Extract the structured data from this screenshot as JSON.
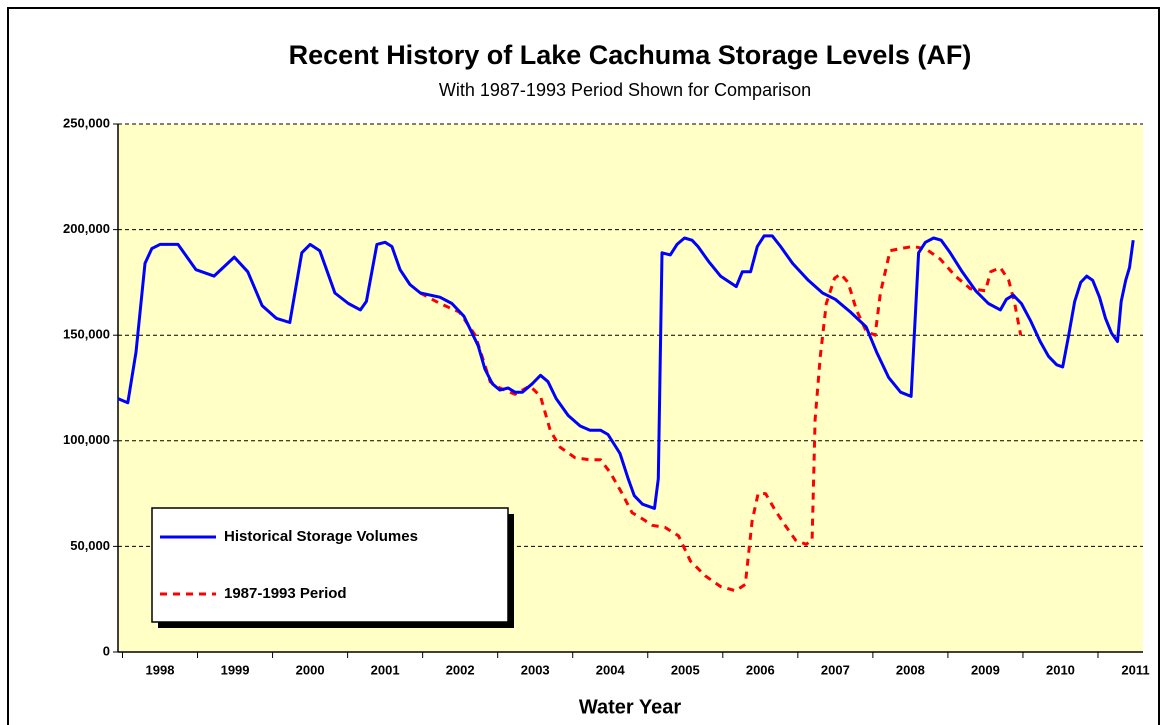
{
  "chart_data": {
    "type": "line",
    "title": "Recent History of Lake Cachuma Storage Levels (AF)",
    "subtitle": "With 1987-1993 Period Shown for Comparison",
    "x_label": "Water Year",
    "xlim": [
      1997.44,
      2011.1
    ],
    "xticks": [
      1998,
      1999,
      2000,
      2001,
      2002,
      2003,
      2004,
      2005,
      2006,
      2007,
      2008,
      2009,
      2010,
      2011
    ],
    "ylim": [
      0,
      250000
    ],
    "yticks": [
      0,
      {
        "value": 50000,
        "label": "50,000"
      },
      {
        "value": 100000,
        "label": "100,000"
      },
      {
        "value": 150000,
        "label": "150,000"
      },
      {
        "value": 200000,
        "label": "200,000"
      },
      {
        "value": 250000,
        "label": "250,000"
      }
    ],
    "grid": true,
    "legend": "lower left",
    "background": "#ffffc6",
    "series": [
      {
        "name": "Historical Storage Volumes",
        "color": "#0000ff",
        "dashed": false,
        "x": [
          1997.44,
          1997.57,
          1997.68,
          1997.8,
          1997.89,
          1998.0,
          1998.24,
          1998.48,
          1998.72,
          1998.99,
          1999.17,
          1999.36,
          1999.55,
          1999.73,
          1999.89,
          2000.0,
          2000.13,
          2000.33,
          2000.51,
          2000.67,
          2000.75,
          2000.89,
          2001.0,
          2001.09,
          2001.2,
          2001.33,
          2001.47,
          2001.73,
          2001.89,
          2002.05,
          2002.24,
          2002.33,
          2002.43,
          2002.53,
          2002.64,
          2002.73,
          2002.83,
          2002.96,
          2003.07,
          2003.17,
          2003.28,
          2003.44,
          2003.6,
          2003.73,
          2003.87,
          2003.97,
          2004.13,
          2004.24,
          2004.32,
          2004.43,
          2004.59,
          2004.64,
          2004.69,
          2004.8,
          2004.89,
          2004.99,
          2005.09,
          2005.17,
          2005.31,
          2005.47,
          2005.68,
          2005.76,
          2005.87,
          2005.96,
          2006.05,
          2006.16,
          2006.27,
          2006.43,
          2006.64,
          2006.83,
          2007.0,
          2007.2,
          2007.41,
          2007.55,
          2007.71,
          2007.87,
          2008.01,
          2008.11,
          2008.2,
          2008.31,
          2008.41,
          2008.53,
          2008.69,
          2008.87,
          2009.04,
          2009.2,
          2009.28,
          2009.37,
          2009.48,
          2009.6,
          2009.73,
          2009.84,
          2009.95,
          2010.03,
          2010.11,
          2010.19,
          2010.27,
          2010.35,
          2010.43,
          2010.52,
          2010.6,
          2010.68,
          2010.76,
          2010.81,
          2010.87,
          2010.92,
          2010.97
        ],
        "values": [
          120000,
          118000,
          142000,
          184000,
          191000,
          193000,
          193000,
          181000,
          178000,
          187000,
          180000,
          164000,
          158000,
          156000,
          189000,
          193000,
          190000,
          170000,
          165000,
          162000,
          166000,
          193000,
          194000,
          192000,
          181000,
          174000,
          170000,
          168000,
          165000,
          159000,
          145000,
          134000,
          127000,
          124000,
          125000,
          123000,
          123000,
          127000,
          131000,
          128000,
          120000,
          112000,
          107000,
          105000,
          105000,
          103000,
          94000,
          82000,
          74000,
          70000,
          68000,
          82000,
          189000,
          188000,
          193000,
          196000,
          195000,
          192000,
          185000,
          178000,
          173000,
          180000,
          180000,
          192000,
          197000,
          197000,
          192000,
          184000,
          176000,
          170000,
          167000,
          161000,
          154000,
          142000,
          130000,
          123000,
          121000,
          189000,
          194000,
          196000,
          195000,
          189000,
          180000,
          171000,
          165000,
          162000,
          167000,
          169000,
          165000,
          157000,
          147000,
          140000,
          136000,
          135000,
          150000,
          166000,
          175000,
          178000,
          176000,
          168000,
          158000,
          151000,
          147000,
          166000,
          176000,
          182000,
          195000
        ]
      },
      {
        "name": "1987-1993 Period",
        "color": "#ff0000",
        "dashed": true,
        "x": [
          2001.47,
          2001.73,
          2001.99,
          2002.2,
          2002.4,
          2002.53,
          2002.73,
          2002.93,
          2003.07,
          2003.2,
          2003.33,
          2003.53,
          2003.73,
          2003.87,
          2004.0,
          2004.16,
          2004.29,
          2004.43,
          2004.56,
          2004.73,
          2004.91,
          2005.07,
          2005.27,
          2005.47,
          2005.67,
          2005.8,
          2005.89,
          2005.97,
          2006.07,
          2006.2,
          2006.33,
          2006.47,
          2006.61,
          2006.69,
          2006.73,
          2006.8,
          2006.88,
          2006.99,
          2007.07,
          2007.17,
          2007.28,
          2007.41,
          2007.53,
          2007.6,
          2007.73,
          2007.87,
          2008.03,
          2008.2,
          2008.4,
          2008.6,
          2008.8,
          2009.0,
          2009.07,
          2009.2,
          2009.31,
          2009.39,
          2009.47
        ],
        "values": [
          170000,
          165000,
          161000,
          150000,
          128000,
          125000,
          122000,
          126000,
          121000,
          105000,
          97000,
          92000,
          91000,
          91000,
          85000,
          75000,
          66000,
          63000,
          60000,
          59000,
          55000,
          43000,
          36000,
          31000,
          29000,
          32000,
          62000,
          75000,
          75000,
          67000,
          60000,
          53000,
          51000,
          53000,
          110000,
          140000,
          165000,
          177000,
          179000,
          175000,
          162000,
          152000,
          150000,
          170000,
          190000,
          191000,
          192000,
          191000,
          186000,
          178000,
          172000,
          171000,
          180000,
          182000,
          176000,
          165000,
          150000
        ]
      }
    ]
  }
}
